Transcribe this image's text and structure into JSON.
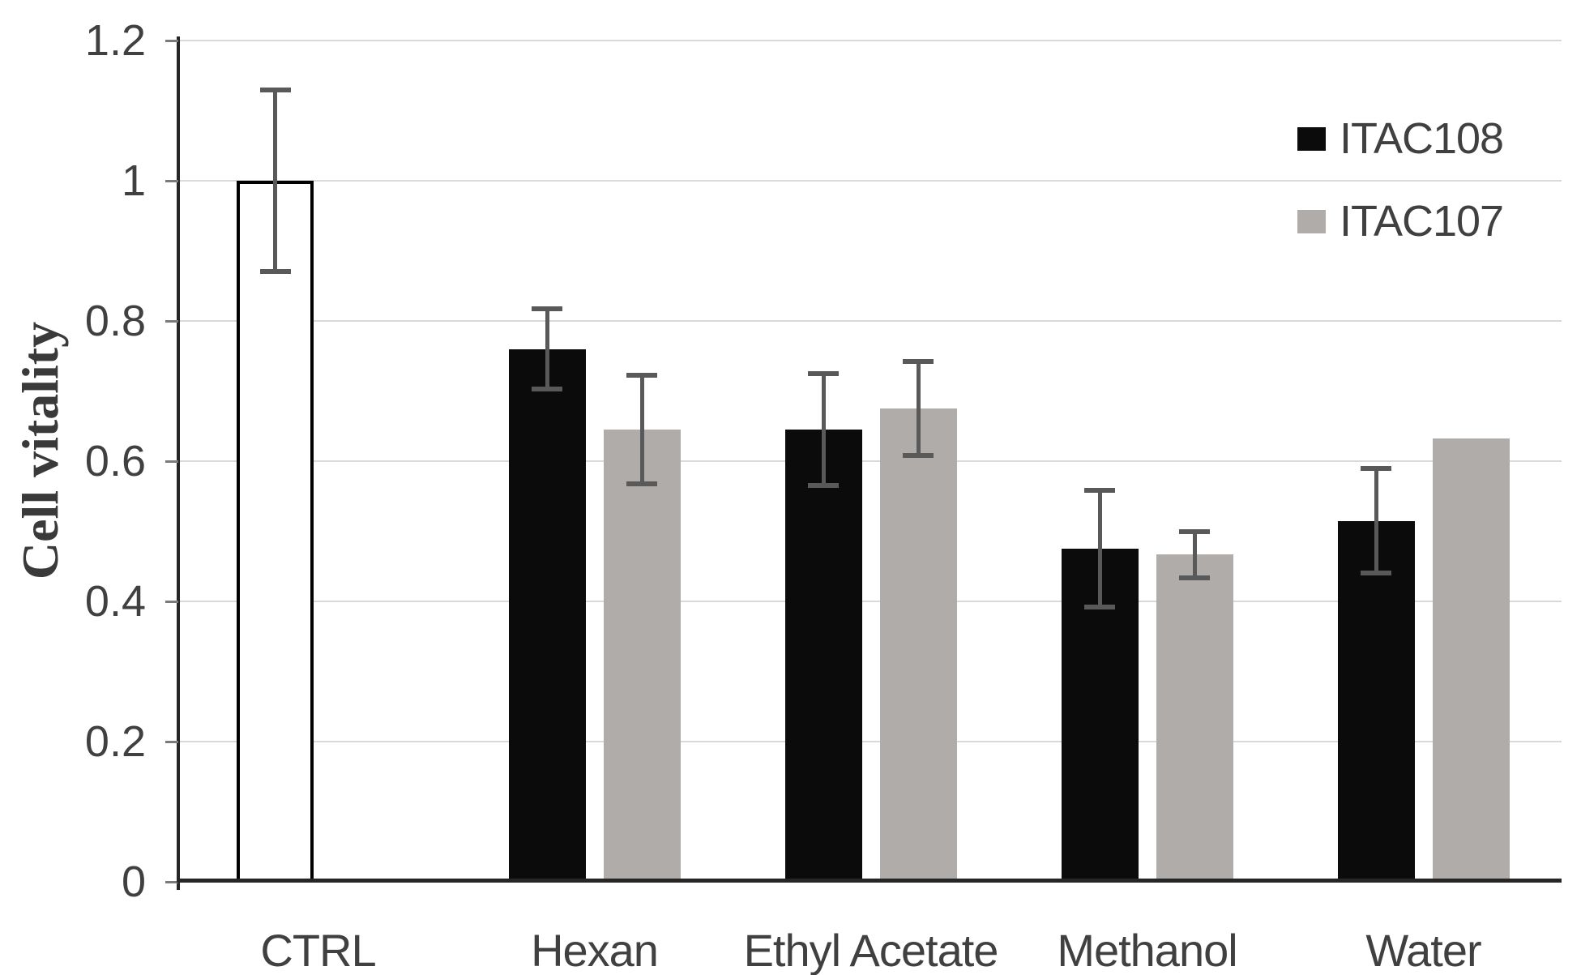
{
  "chart_data": {
    "type": "bar",
    "title": "",
    "ylabel": "Cell vitality",
    "xlabel": "",
    "ylim": [
      0,
      1.2
    ],
    "ytick_step": 0.2,
    "yticks": [
      {
        "label": "0",
        "value": 0
      },
      {
        "label": "0.2",
        "value": 0.2
      },
      {
        "label": "0.4",
        "value": 0.4
      },
      {
        "label": "0.6",
        "value": 0.6
      },
      {
        "label": "0.8",
        "value": 0.8
      },
      {
        "label": "1",
        "value": 1
      },
      {
        "label": "1.2",
        "value": 1.2
      }
    ],
    "grid": true,
    "legend_position": "top-right-inside",
    "categories": [
      "CTRL",
      "Hexan",
      "Ethyl Acetate",
      "Methanol",
      "Water"
    ],
    "series": [
      {
        "name": "CTRL",
        "in_legend": false,
        "fill": "#ffffff",
        "border": "#000000",
        "values": [
          1.0,
          null,
          null,
          null,
          null
        ],
        "errors": [
          0.13,
          null,
          null,
          null,
          null
        ]
      },
      {
        "name": "ITAC108",
        "in_legend": true,
        "fill": "#0b0b0b",
        "border": null,
        "values": [
          null,
          0.76,
          0.645,
          0.475,
          0.515
        ],
        "errors": [
          null,
          0.057,
          0.08,
          0.083,
          0.075
        ]
      },
      {
        "name": "ITAC107",
        "in_legend": true,
        "fill": "#b0aca9",
        "border": null,
        "values": [
          null,
          0.645,
          0.675,
          0.467,
          0.632
        ],
        "errors": [
          null,
          0.077,
          0.067,
          0.033,
          null
        ]
      }
    ],
    "error_bar_color": "#595959",
    "colors": {
      "axis": "#262626",
      "gridline": "#d9d9d9",
      "tick": "#7a7a7a",
      "text": "#404040"
    }
  }
}
